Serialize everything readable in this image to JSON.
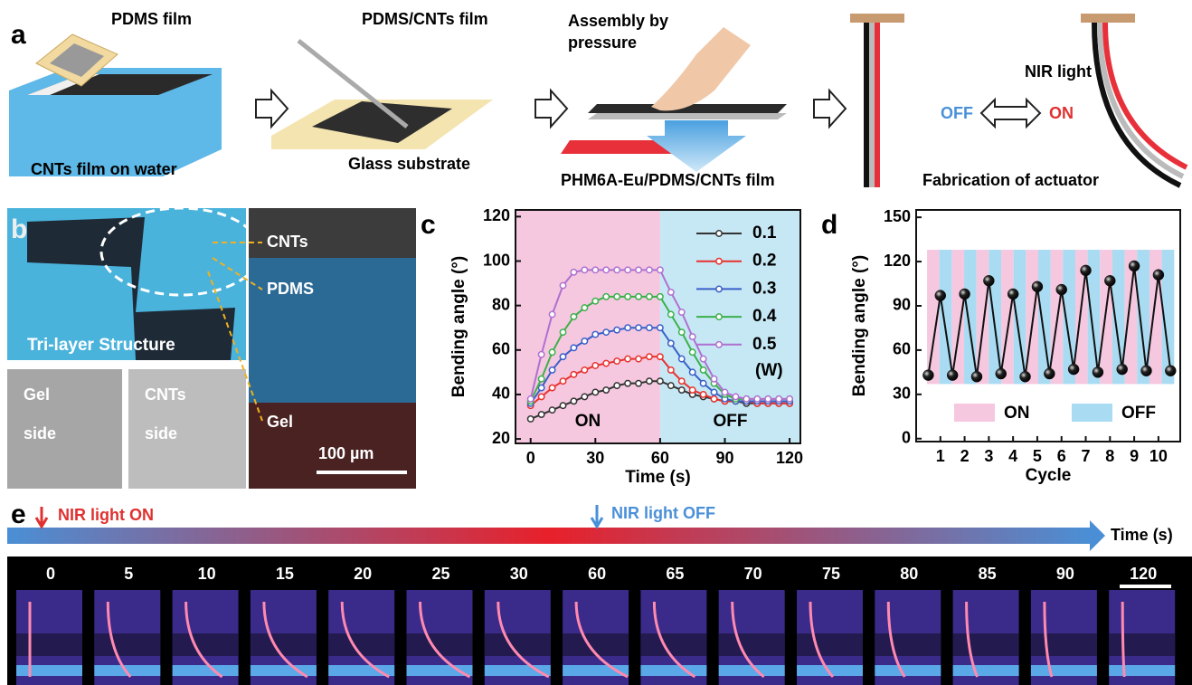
{
  "panel_a": {
    "label": "a",
    "pdms_film": "PDMS film",
    "cnts_on_water": "CNTs film on water",
    "pdms_cnts_film": "PDMS/CNTs film",
    "glass": "Glass substrate",
    "assembly": [
      "Assembly by",
      "pressure"
    ],
    "composite": "PHM6A-Eu/PDMS/CNTs film",
    "nir": "NIR light",
    "off": "OFF",
    "on": "ON",
    "fabrication": "Fabrication of actuator"
  },
  "panel_b": {
    "label": "b",
    "photo": "Tri-layer Structure",
    "gel_side": [
      "Gel",
      "side"
    ],
    "cnts_side": [
      "CNTs",
      "side"
    ],
    "layers": [
      "CNTs",
      "PDMS",
      "Gel"
    ],
    "scale": "100 µm"
  },
  "chart_data": [
    {
      "type": "line",
      "panel": "c",
      "x_label": "Time (s)",
      "y_label": "Bending angle (°)",
      "x": [
        0,
        5,
        10,
        15,
        20,
        25,
        30,
        35,
        40,
        45,
        50,
        55,
        60,
        65,
        70,
        75,
        80,
        85,
        90,
        95,
        100,
        105,
        110,
        115,
        120
      ],
      "xlim": [
        -7,
        125
      ],
      "xticks": [
        0,
        30,
        60,
        90,
        120
      ],
      "ylim": [
        18,
        123
      ],
      "yticks": [
        20,
        40,
        60,
        80,
        100,
        120
      ],
      "regions": [
        {
          "label": "ON",
          "from": -7,
          "to": 60,
          "color": "#f5c8df"
        },
        {
          "label": "OFF",
          "from": 60,
          "to": 125,
          "color": "#c6e8f5"
        }
      ],
      "legend_unit": "(W)",
      "series": [
        {
          "name": "0.1",
          "color": "#333333",
          "values": [
            29,
            31,
            33,
            35,
            37,
            39,
            41,
            42,
            44,
            45,
            45,
            46,
            46,
            44,
            42,
            40,
            39,
            38,
            37,
            37,
            36,
            36,
            36,
            36,
            36
          ]
        },
        {
          "name": "0.2",
          "color": "#e8322e",
          "values": [
            35,
            39,
            43,
            46,
            49,
            51,
            53,
            54,
            55,
            56,
            56,
            57,
            57,
            51,
            46,
            42,
            40,
            38,
            37,
            37,
            37,
            36,
            36,
            36,
            36
          ]
        },
        {
          "name": "0.3",
          "color": "#3a5fc8",
          "values": [
            36,
            43,
            51,
            57,
            61,
            64,
            67,
            68,
            69,
            70,
            70,
            70,
            70,
            63,
            56,
            50,
            45,
            41,
            38,
            37,
            37,
            37,
            37,
            37,
            37
          ]
        },
        {
          "name": "0.4",
          "color": "#3cb04a",
          "values": [
            37,
            47,
            59,
            68,
            75,
            79,
            82,
            84,
            84,
            84,
            84,
            84,
            84,
            76,
            68,
            59,
            51,
            45,
            40,
            38,
            38,
            38,
            38,
            38,
            38
          ]
        },
        {
          "name": "0.5",
          "color": "#b070d0",
          "values": [
            38,
            58,
            76,
            89,
            95,
            96,
            96,
            96,
            96,
            96,
            96,
            96,
            96,
            86,
            77,
            66,
            56,
            47,
            41,
            39,
            38,
            38,
            38,
            38,
            38
          ]
        }
      ]
    },
    {
      "type": "line",
      "panel": "d",
      "x_label": "Cycle",
      "y_label": "Bending angle (°)",
      "x": [
        0.5,
        1,
        1.5,
        2,
        2.5,
        3,
        3.5,
        4,
        4.5,
        5,
        5.5,
        6,
        6.5,
        7,
        7.5,
        8,
        8.5,
        9,
        9.5,
        10,
        10.5
      ],
      "xlim": [
        0,
        10.9
      ],
      "xticks": [
        1,
        2,
        3,
        4,
        5,
        6,
        7,
        8,
        9,
        10
      ],
      "ylim": [
        -2,
        155
      ],
      "yticks": [
        0,
        30,
        60,
        90,
        120,
        150
      ],
      "legend": [
        {
          "label": "ON",
          "color": "#f5c8df"
        },
        {
          "label": "OFF",
          "color": "#a9dcf2"
        }
      ],
      "series": [
        {
          "color": "#111111",
          "values": [
            43,
            97,
            43,
            98,
            42,
            107,
            44,
            98,
            42,
            103,
            44,
            101,
            47,
            114,
            45,
            107,
            47,
            117,
            46,
            111,
            46
          ]
        }
      ]
    }
  ],
  "panel_e": {
    "label": "e",
    "light_on": "NIR light ON",
    "light_off": "NIR light OFF",
    "axis": "Time (s)",
    "times": [
      0,
      5,
      10,
      15,
      20,
      25,
      30,
      60,
      65,
      70,
      75,
      80,
      85,
      90,
      120
    ]
  }
}
